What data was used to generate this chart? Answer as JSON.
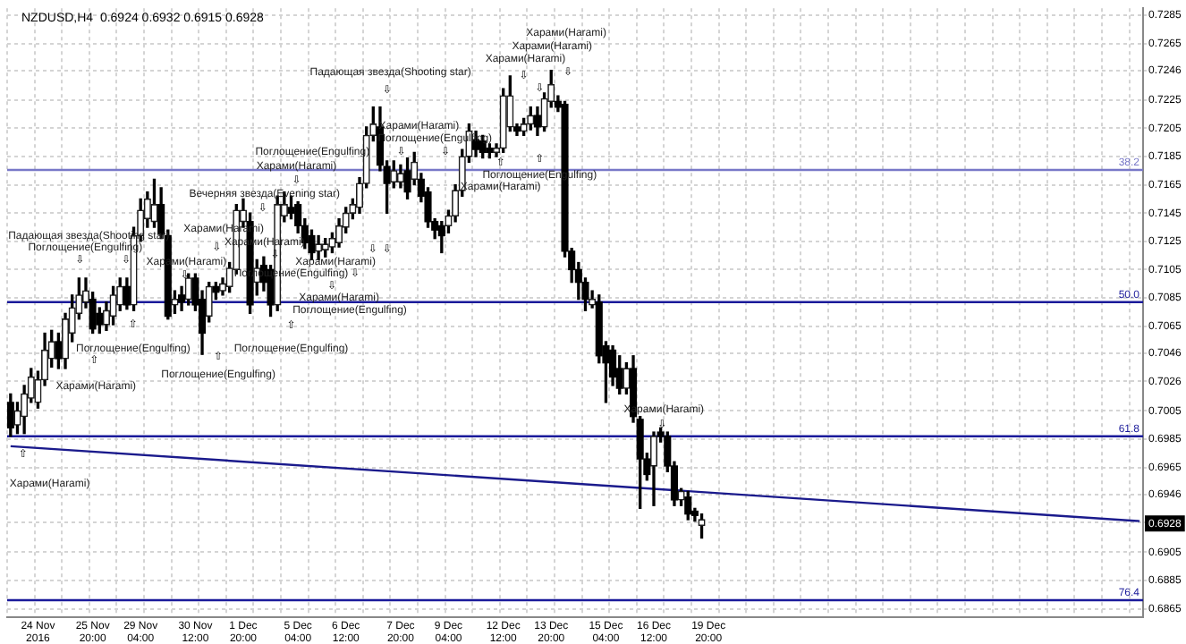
{
  "chart_data": {
    "type": "candlestick",
    "title": "NZDUSD,H4  0.6924 0.6932 0.6915 0.6928",
    "categories": [
      null,
      null,
      null,
      null,
      "24 Nov 2016",
      null,
      null,
      null,
      null,
      null,
      null,
      null,
      "25 Nov 20:00",
      null,
      null,
      null,
      null,
      null,
      null,
      "29 Nov 04:00",
      null,
      null,
      null,
      null,
      null,
      null,
      null,
      "30 Nov 12:00",
      null,
      null,
      null,
      null,
      null,
      null,
      "1 Dec 20:00",
      null,
      null,
      null,
      null,
      null,
      null,
      null,
      "5 Dec 04:00",
      null,
      null,
      null,
      null,
      null,
      null,
      "6 Dec 12:00",
      null,
      null,
      null,
      null,
      null,
      null,
      null,
      "7 Dec 20:00",
      null,
      null,
      null,
      null,
      null,
      null,
      "9 Dec 04:00",
      null,
      null,
      null,
      null,
      null,
      null,
      null,
      "12 Dec 12:00",
      null,
      null,
      null,
      null,
      null,
      null,
      "13 Dec 20:00",
      null,
      null,
      null,
      null,
      null,
      null,
      null,
      "15 Dec 04:00",
      null,
      null,
      null,
      null,
      null,
      null,
      "16 Dec 12:00",
      null,
      null,
      null,
      null,
      null,
      null,
      null,
      "19 Dec 20:00",
      null,
      null,
      null,
      null,
      null,
      null,
      null,
      null,
      null,
      null,
      null,
      null,
      null,
      null,
      null,
      null,
      null,
      null,
      null,
      null,
      null,
      null,
      null,
      null,
      null,
      null,
      null,
      null,
      null,
      null,
      null,
      null,
      null,
      null,
      null,
      null,
      null,
      null,
      null,
      null,
      null,
      null,
      null,
      null,
      null,
      null,
      null,
      null,
      null,
      null,
      null,
      null,
      null,
      null,
      null,
      null,
      null,
      null,
      null,
      null,
      null,
      null,
      null
    ],
    "ohlc": [
      [
        0.7011,
        0.7017,
        0.6987,
        0.6993
      ],
      [
        0.6995,
        0.7011,
        0.6989,
        0.7005
      ],
      [
        0.7001,
        0.7023,
        0.6989,
        0.7017
      ],
      [
        0.7014,
        0.7035,
        0.7011,
        0.7029
      ],
      [
        0.7011,
        0.7033,
        0.7007,
        0.7027
      ],
      [
        0.7027,
        0.706,
        0.7023,
        0.7048
      ],
      [
        0.7042,
        0.7062,
        0.7036,
        0.7054
      ],
      [
        0.7054,
        0.706,
        0.7035,
        0.7042
      ],
      [
        0.7042,
        0.7074,
        0.7035,
        0.707
      ],
      [
        0.706,
        0.7087,
        0.7054,
        0.7078
      ],
      [
        0.7074,
        0.7099,
        0.707,
        0.7087
      ],
      [
        0.7082,
        0.7099,
        0.7078,
        0.709
      ],
      [
        0.7084,
        0.7089,
        0.706,
        0.7063
      ],
      [
        0.7074,
        0.7078,
        0.706,
        0.7066
      ],
      [
        0.7066,
        0.7082,
        0.7062,
        0.7076
      ],
      [
        0.7072,
        0.7093,
        0.7066,
        0.7087
      ],
      [
        0.708,
        0.7099,
        0.7076,
        0.7093
      ],
      [
        0.7093,
        0.7099,
        0.7077,
        0.708
      ],
      [
        0.708,
        0.7135,
        0.7076,
        0.7129
      ],
      [
        0.7129,
        0.7155,
        0.7125,
        0.7147
      ],
      [
        0.7141,
        0.716,
        0.7135,
        0.7155
      ],
      [
        0.7139,
        0.7169,
        0.7135,
        0.7151
      ],
      [
        0.7151,
        0.7163,
        0.7127,
        0.713
      ],
      [
        0.7129,
        0.7133,
        0.707,
        0.7072
      ],
      [
        0.708,
        0.709,
        0.7074,
        0.7084
      ],
      [
        0.7087,
        0.7093,
        0.7076,
        0.7082
      ],
      [
        0.7084,
        0.7102,
        0.708,
        0.7099
      ],
      [
        0.7099,
        0.7102,
        0.7076,
        0.708
      ],
      [
        0.7084,
        0.709,
        0.7045,
        0.706
      ],
      [
        0.7072,
        0.7096,
        0.7068,
        0.7093
      ],
      [
        0.7093,
        0.7096,
        0.7084,
        0.7089
      ],
      [
        0.709,
        0.7099,
        0.7087,
        0.7095
      ],
      [
        0.7093,
        0.711,
        0.7089,
        0.7106
      ],
      [
        0.7105,
        0.7151,
        0.7102,
        0.7147
      ],
      [
        0.7139,
        0.7155,
        0.7135,
        0.7147
      ],
      [
        0.7139,
        0.7145,
        0.7074,
        0.708
      ],
      [
        0.7096,
        0.7112,
        0.7087,
        0.7106
      ],
      [
        0.7108,
        0.7114,
        0.709,
        0.7096
      ],
      [
        0.7105,
        0.7108,
        0.7072,
        0.708
      ],
      [
        0.708,
        0.7157,
        0.7076,
        0.7151
      ],
      [
        0.7143,
        0.716,
        0.7139,
        0.7151
      ],
      [
        0.7149,
        0.7157,
        0.7141,
        0.7145
      ],
      [
        0.7151,
        0.7153,
        0.7131,
        0.7136
      ],
      [
        0.7136,
        0.7141,
        0.712,
        0.7124
      ],
      [
        0.7129,
        0.7133,
        0.7112,
        0.7117
      ],
      [
        0.7118,
        0.7129,
        0.7112,
        0.7123
      ],
      [
        0.7119,
        0.7127,
        0.7114,
        0.7123
      ],
      [
        0.7121,
        0.7131,
        0.7117,
        0.7127
      ],
      [
        0.7124,
        0.7141,
        0.7121,
        0.7136
      ],
      [
        0.7135,
        0.7149,
        0.7131,
        0.7145
      ],
      [
        0.7145,
        0.7155,
        0.7141,
        0.7151
      ],
      [
        0.7149,
        0.717,
        0.7145,
        0.7166
      ],
      [
        0.7166,
        0.7206,
        0.7163,
        0.72
      ],
      [
        0.72,
        0.722,
        0.7196,
        0.7208
      ],
      [
        0.7206,
        0.722,
        0.7175,
        0.7179
      ],
      [
        0.7178,
        0.7182,
        0.7145,
        0.7166
      ],
      [
        0.7167,
        0.7182,
        0.7163,
        0.7175
      ],
      [
        0.7167,
        0.7179,
        0.7163,
        0.7173
      ],
      [
        0.7175,
        0.7184,
        0.7155,
        0.716
      ],
      [
        0.7169,
        0.7188,
        0.7165,
        0.7181
      ],
      [
        0.7169,
        0.7173,
        0.7153,
        0.7157
      ],
      [
        0.716,
        0.7163,
        0.7135,
        0.7139
      ],
      [
        0.7139,
        0.7141,
        0.7127,
        0.7133
      ],
      [
        0.7136,
        0.7139,
        0.7117,
        0.7129
      ],
      [
        0.7136,
        0.7147,
        0.7131,
        0.7143
      ],
      [
        0.7143,
        0.7165,
        0.7139,
        0.7161
      ],
      [
        0.7161,
        0.719,
        0.7157,
        0.7185
      ],
      [
        0.7185,
        0.7208,
        0.7181,
        0.7203
      ],
      [
        0.7197,
        0.7203,
        0.7185,
        0.719
      ],
      [
        0.7196,
        0.72,
        0.7184,
        0.7188
      ],
      [
        0.7191,
        0.7194,
        0.7184,
        0.7188
      ],
      [
        0.7188,
        0.7194,
        0.7185,
        0.7191
      ],
      [
        0.7191,
        0.7233,
        0.7188,
        0.7228
      ],
      [
        0.7206,
        0.7242,
        0.7203,
        0.7228
      ],
      [
        0.7206,
        0.7208,
        0.72,
        0.7203
      ],
      [
        0.7203,
        0.7212,
        0.72,
        0.7208
      ],
      [
        0.7208,
        0.722,
        0.7204,
        0.7214
      ],
      [
        0.7214,
        0.722,
        0.72,
        0.7206
      ],
      [
        0.7206,
        0.723,
        0.7203,
        0.7226
      ],
      [
        0.7224,
        0.7246,
        0.722,
        0.7236
      ],
      [
        0.7224,
        0.7228,
        0.7217,
        0.722
      ],
      [
        0.7222,
        0.7224,
        0.7114,
        0.7118
      ],
      [
        0.7118,
        0.712,
        0.7096,
        0.7105
      ],
      [
        0.7105,
        0.711,
        0.7084,
        0.7096
      ],
      [
        0.7096,
        0.7099,
        0.7076,
        0.7084
      ],
      [
        0.708,
        0.709,
        0.7078,
        0.7084
      ],
      [
        0.7082,
        0.7087,
        0.7039,
        0.7044
      ],
      [
        0.7051,
        0.7054,
        0.7011,
        0.7039
      ],
      [
        0.7048,
        0.7051,
        0.7023,
        0.7029
      ],
      [
        0.7035,
        0.7044,
        0.7017,
        0.7021
      ],
      [
        0.7021,
        0.7039,
        0.7017,
        0.7035
      ],
      [
        0.7035,
        0.7044,
        0.6997,
        0.7001
      ],
      [
        0.6999,
        0.7001,
        0.6936,
        0.6971
      ],
      [
        0.6971,
        0.6975,
        0.6956,
        0.696
      ],
      [
        0.6966,
        0.699,
        0.6938,
        0.6987
      ],
      [
        0.699,
        0.6993,
        0.6983,
        0.6987
      ],
      [
        0.6987,
        0.699,
        0.6962,
        0.6966
      ],
      [
        0.6966,
        0.6969,
        0.6938,
        0.6942
      ],
      [
        0.6942,
        0.695,
        0.6938,
        0.6948
      ],
      [
        0.6944,
        0.6948,
        0.6928,
        0.6932
      ],
      [
        0.6934,
        0.6936,
        0.6927,
        0.6931
      ],
      [
        0.6924,
        0.6932,
        0.6915,
        0.6928
      ],
      null,
      null,
      null,
      null,
      null,
      null,
      null,
      null,
      null,
      null,
      null,
      null,
      null,
      null,
      null,
      null,
      null,
      null,
      null,
      null,
      null,
      null,
      null,
      null,
      null,
      null,
      null,
      null,
      null,
      null,
      null,
      null,
      null,
      null,
      null,
      null,
      null,
      null,
      null,
      null,
      null,
      null,
      null,
      null,
      null,
      null,
      null,
      null,
      null,
      null,
      null,
      null,
      null,
      null,
      null,
      null,
      null,
      null,
      null,
      null,
      null,
      null,
      null,
      null
    ],
    "series": [
      {
        "type": "line",
        "color": "#1a1a8c",
        "values": [
          0.698,
          null,
          null,
          null,
          null,
          null,
          null,
          null,
          null,
          null,
          null,
          null,
          null,
          null,
          null,
          null,
          null,
          null,
          null,
          null,
          null,
          null,
          null,
          null,
          null,
          null,
          null,
          null,
          null,
          null,
          null,
          null,
          null,
          null,
          null,
          null,
          null,
          null,
          null,
          null,
          null,
          null,
          null,
          null,
          null,
          null,
          null,
          null,
          null,
          null,
          null,
          null,
          null,
          null,
          null,
          null,
          null,
          null,
          null,
          null,
          null,
          null,
          null,
          null,
          null,
          null,
          null,
          null,
          null,
          null,
          null,
          null,
          null,
          null,
          null,
          null,
          null,
          null,
          null,
          null,
          null,
          null,
          null,
          null,
          null,
          null,
          null,
          null,
          null,
          null,
          null,
          null,
          null,
          null,
          null,
          null,
          null,
          null,
          null,
          null,
          null,
          null,
          null,
          null,
          null,
          null,
          null,
          null,
          null,
          null,
          null,
          null,
          null,
          null,
          null,
          null,
          null,
          null,
          null,
          null,
          null,
          null,
          null,
          null,
          null,
          null,
          null,
          null,
          null,
          null,
          null,
          null,
          null,
          null,
          null,
          null,
          null,
          null,
          null,
          null,
          null,
          null,
          null,
          null,
          null,
          null,
          null,
          null,
          null,
          null,
          null,
          null,
          null,
          null,
          null,
          null,
          null,
          null,
          null,
          null,
          null,
          null,
          null,
          null,
          null,
          0.6927
        ]
      }
    ],
    "ylim": [
      0.6859,
      0.729
    ],
    "yticks": [
      0.7285,
      0.7265,
      0.7246,
      0.7225,
      0.7205,
      0.7185,
      0.7165,
      0.7145,
      0.7125,
      0.7105,
      0.7085,
      0.7065,
      0.7046,
      0.7026,
      0.7005,
      0.6985,
      0.6965,
      0.6946,
      {
        "value": 0.6926,
        "label": null
      },
      0.6905,
      0.6885,
      0.6865
    ],
    "grid": true,
    "ref_lines": [
      {
        "axis": "y",
        "value": 0.71755,
        "color": "#7878c8"
      },
      {
        "axis": "y",
        "value": 0.7082,
        "color": "#1a1a9a"
      },
      {
        "axis": "y",
        "value": 0.6987,
        "color": "#1a1a9a"
      },
      {
        "axis": "y",
        "value": 0.6871,
        "color": "#1a1a9a"
      }
    ],
    "annotations": [
      "Падающая звезда(Shooting star)",
      "⇩",
      "Харами(Harami)",
      "⇩",
      "Вечерняя звезда(Evening star)",
      "⇩",
      "Падающая звезда(Shooting star)",
      "⇩",
      "Поглощение(Engulfing)",
      "⇩",
      "Харами(Harami)",
      "⇩",
      "⇩",
      "Харами(Harami)",
      "Харами(Harami)",
      "⇩",
      "Поглощение(Engulfing)",
      "⇩",
      "⇩",
      "Поглощение(Engulfing)",
      "Харами(Harami)",
      "⇩",
      "⇩",
      "Харами(Harami)",
      "Поглощение(Engulfing)",
      "⇧",
      "Поглощение(Engulfing)",
      "⇧",
      "Поглощение(Engulfing)",
      "⇧",
      "Поглощение(Engulfing)",
      "⇧",
      "Харами(Harami)",
      "⇧",
      "Харами(Harami)",
      "Харами(Harami)",
      "Харами(Harami)",
      "Харами(Harami)",
      "⇩",
      "⇩",
      "⇩",
      "Харами(Harami)",
      "Поглощение(Engulfing)",
      "⇩",
      "⇩",
      "⇧",
      "⇧",
      "Поглощение(Engulfing)",
      "Харами(Harami)",
      "Харами(Harami)",
      "⇩",
      "0.6928",
      "38.2",
      "50.0",
      "61.8",
      "76.4"
    ]
  }
}
